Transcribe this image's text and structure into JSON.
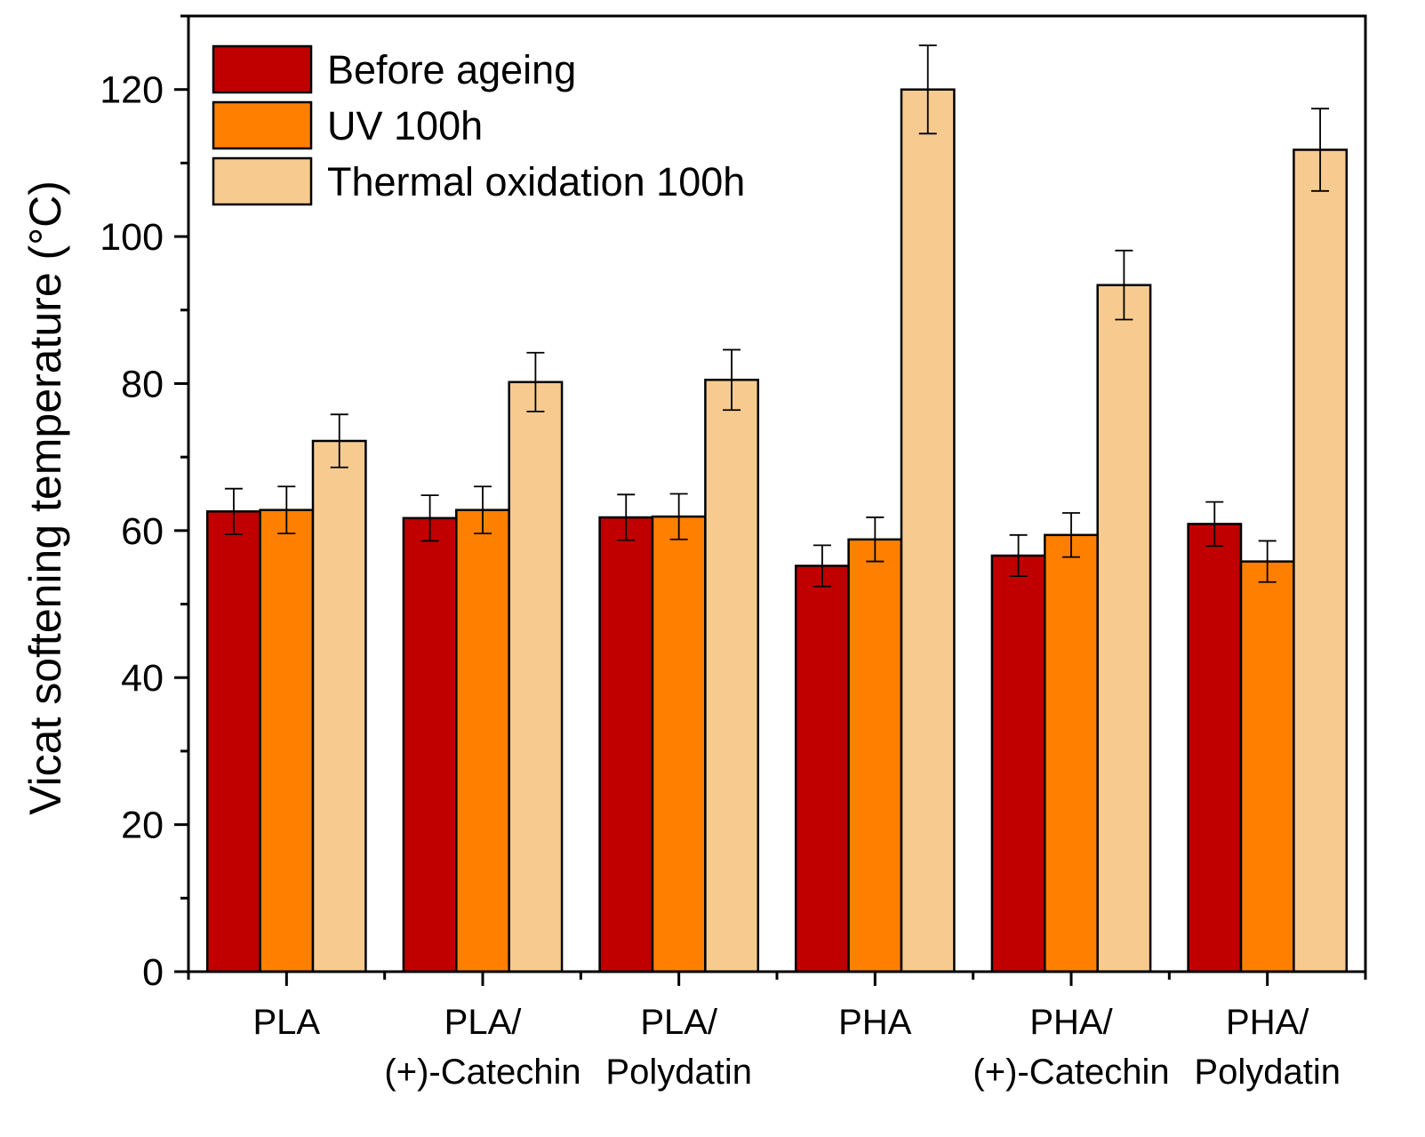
{
  "chart_data": {
    "type": "bar",
    "title": "",
    "xlabel": "",
    "ylabel": "Vicat softening temperature (°C)",
    "ylim": [
      0,
      130
    ],
    "y_major_ticks": [
      0,
      20,
      40,
      60,
      80,
      100,
      120
    ],
    "y_minor_step": 10,
    "grid": false,
    "legend_position": "top-left",
    "categories": [
      [
        "PLA"
      ],
      [
        "PLA/",
        "(+)-Catechin"
      ],
      [
        "PLA/",
        "Polydatin"
      ],
      [
        "PHA"
      ],
      [
        "PHA/",
        "(+)-Catechin"
      ],
      [
        "PHA/",
        "Polydatin"
      ]
    ],
    "series": [
      {
        "name": "Before ageing",
        "color": "#c00000",
        "values": [
          62.6,
          61.7,
          61.8,
          55.2,
          56.6,
          60.9
        ],
        "errors": [
          3.1,
          3.1,
          3.1,
          2.8,
          2.8,
          3.0
        ]
      },
      {
        "name": "UV 100h",
        "color": "#ff8000",
        "values": [
          62.8,
          62.8,
          61.9,
          58.8,
          59.4,
          55.8
        ],
        "errors": [
          3.2,
          3.2,
          3.1,
          3.0,
          3.0,
          2.8
        ]
      },
      {
        "name": "Thermal oxidation 100h",
        "color": "#f7cb8f",
        "values": [
          72.2,
          80.2,
          80.5,
          120.0,
          93.4,
          111.8
        ],
        "errors": [
          3.6,
          4.0,
          4.1,
          6.0,
          4.7,
          5.6
        ]
      }
    ]
  }
}
